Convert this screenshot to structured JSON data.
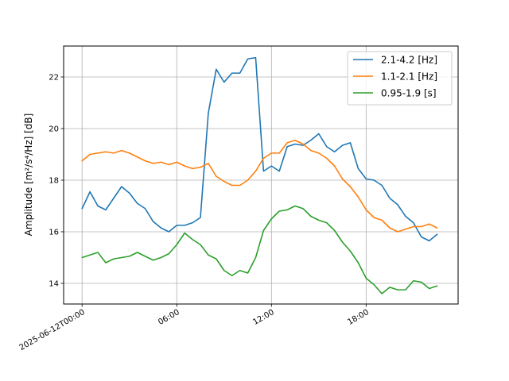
{
  "chart_data": {
    "type": "line",
    "title": "",
    "xlabel": "",
    "ylabel": "Amplitude [m²/s⁴/Hz] [dB]",
    "x_start": "2025-06-12T00:00",
    "x_interval_minutes": 30,
    "xlim_hours": [
      -1.17,
      23.83
    ],
    "ylim": [
      13.2,
      23.2
    ],
    "x_ticks": [
      {
        "hours": 0,
        "label": "2025-06-12T00:00"
      },
      {
        "hours": 6,
        "label": "06:00"
      },
      {
        "hours": 12,
        "label": "12:00"
      },
      {
        "hours": 18,
        "label": "18:00"
      }
    ],
    "y_ticks": [
      14,
      16,
      18,
      20,
      22
    ],
    "grid": true,
    "legend_position": "top-right",
    "series": [
      {
        "name": "2.1-4.2 [Hz]",
        "color": "#1f77b4",
        "values": [
          16.9,
          17.55,
          17.0,
          16.85,
          17.3,
          17.75,
          17.5,
          17.1,
          16.9,
          16.4,
          16.15,
          16.0,
          16.25,
          16.25,
          16.35,
          16.55,
          20.6,
          22.3,
          21.8,
          22.15,
          22.15,
          22.7,
          22.75,
          18.35,
          18.55,
          18.35,
          19.3,
          19.4,
          19.35,
          19.55,
          19.8,
          19.3,
          19.1,
          19.35,
          19.45,
          18.45,
          18.05,
          18.0,
          17.8,
          17.3,
          17.05,
          16.6,
          16.35,
          15.8,
          15.65,
          15.9
        ]
      },
      {
        "name": "1.1-2.1 [Hz]",
        "color": "#ff7f0e",
        "values": [
          18.75,
          19.0,
          19.05,
          19.1,
          19.05,
          19.15,
          19.05,
          18.9,
          18.75,
          18.65,
          18.7,
          18.6,
          18.7,
          18.55,
          18.45,
          18.5,
          18.65,
          18.15,
          17.95,
          17.8,
          17.8,
          18.0,
          18.35,
          18.85,
          19.05,
          19.05,
          19.45,
          19.55,
          19.4,
          19.15,
          19.05,
          18.85,
          18.55,
          18.05,
          17.75,
          17.35,
          16.85,
          16.55,
          16.45,
          16.15,
          16.0,
          16.1,
          16.2,
          16.2,
          16.3,
          16.15
        ]
      },
      {
        "name": "0.95-1.9 [s]",
        "color": "#2ca02c",
        "values": [
          15.0,
          15.1,
          15.2,
          14.8,
          14.95,
          15.0,
          15.05,
          15.2,
          15.05,
          14.9,
          15.0,
          15.15,
          15.5,
          15.95,
          15.7,
          15.5,
          15.1,
          14.95,
          14.5,
          14.3,
          14.5,
          14.4,
          15.0,
          16.05,
          16.5,
          16.8,
          16.85,
          17.0,
          16.9,
          16.6,
          16.45,
          16.35,
          16.05,
          15.6,
          15.25,
          14.8,
          14.2,
          13.95,
          13.6,
          13.85,
          13.75,
          13.75,
          14.1,
          14.05,
          13.8,
          13.9
        ]
      }
    ]
  }
}
